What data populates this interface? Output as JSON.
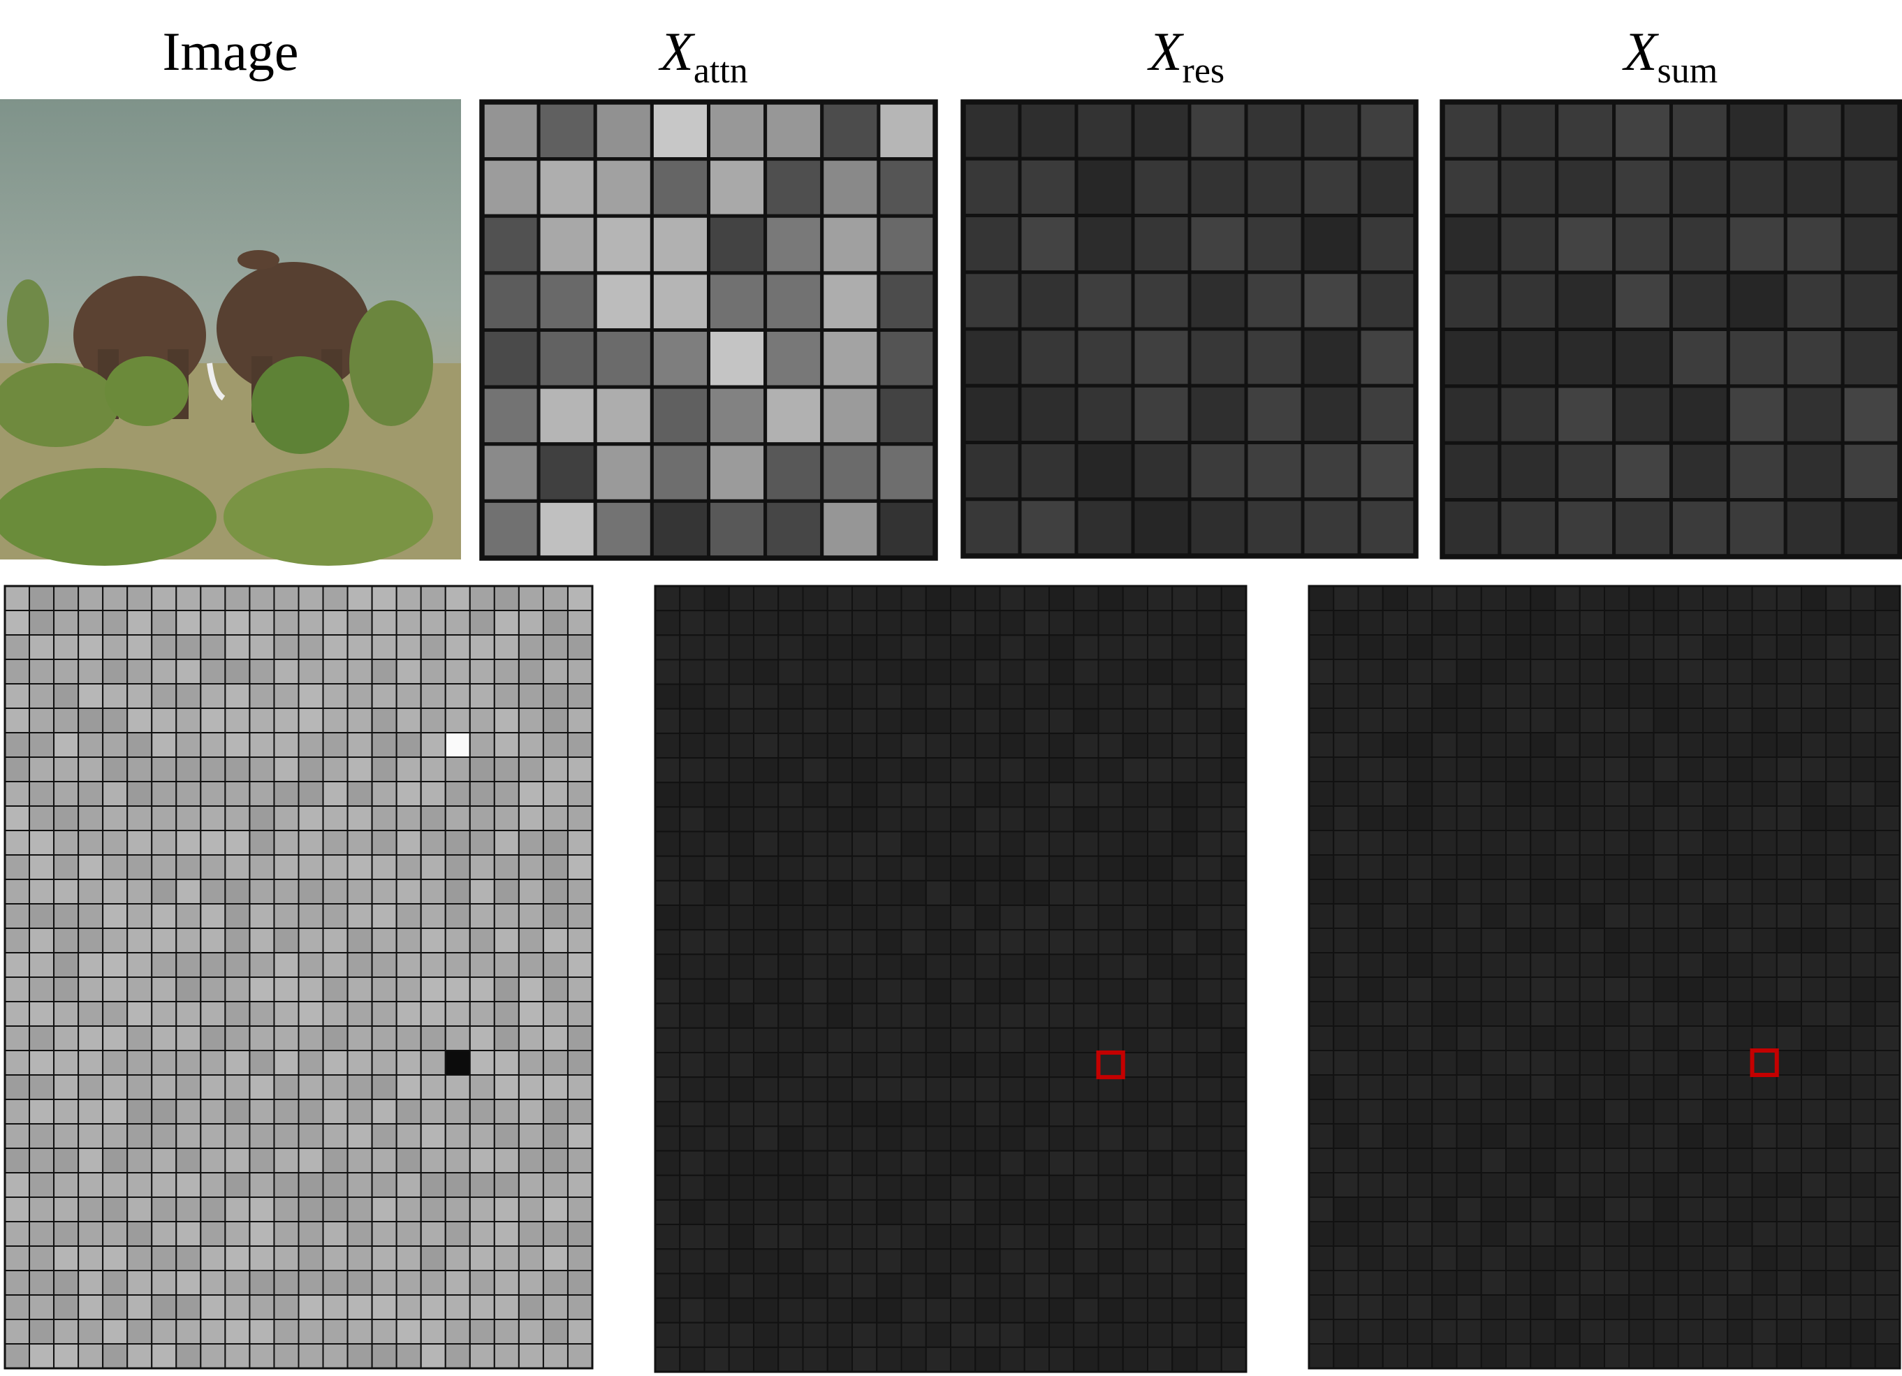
{
  "titles": [
    {
      "main": "Image"
    },
    {
      "main": "X",
      "sub": "attn"
    },
    {
      "main": "X",
      "sub": "res"
    },
    {
      "main": "X",
      "sub": "sum"
    }
  ]
}
